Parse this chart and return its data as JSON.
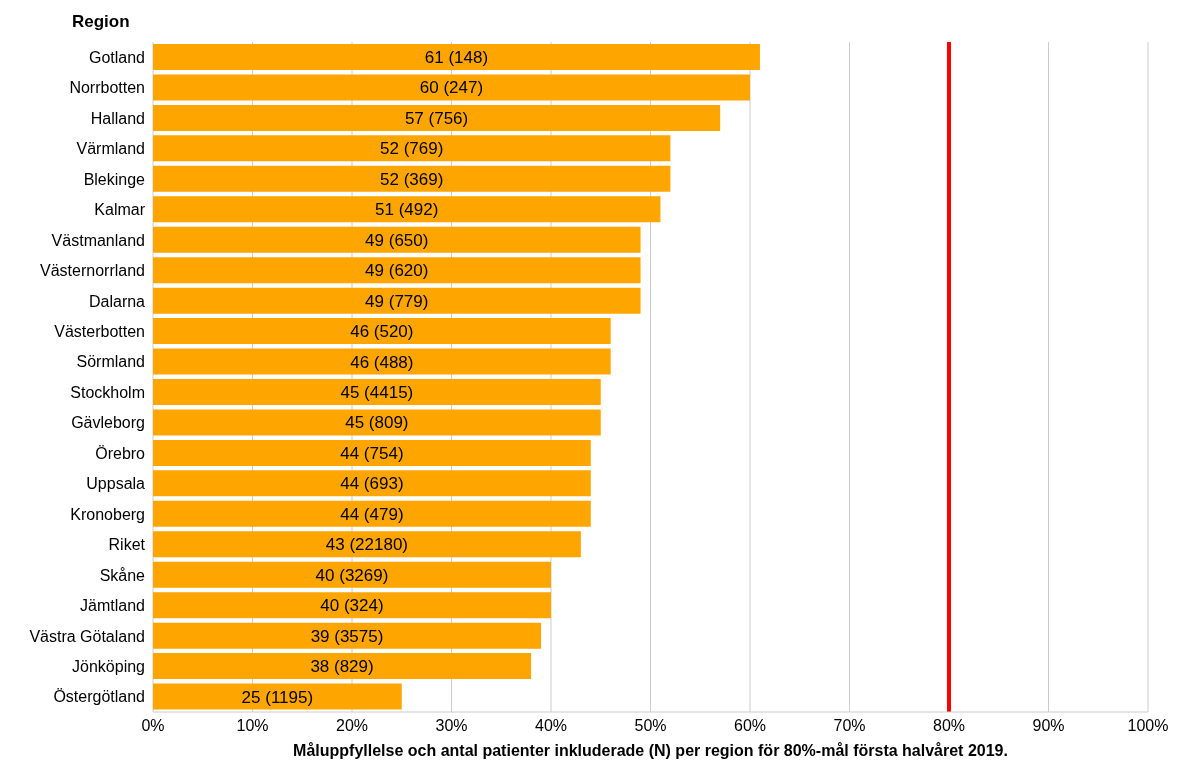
{
  "chart_data": {
    "type": "bar",
    "orientation": "horizontal",
    "ylabel": "Region",
    "xlabel": "Måluppfyllelse och antal patienter inkluderade (N) per region för 80%-mål första halvåret 2019.",
    "categories": [
      "Gotland",
      "Norrbotten",
      "Halland",
      "Värmland",
      "Blekinge",
      "Kalmar",
      "Västmanland",
      "Västernorrland",
      "Dalarna",
      "Västerbotten",
      "Sörmland",
      "Stockholm",
      "Gävleborg",
      "Örebro",
      "Uppsala",
      "Kronoberg",
      "Riket",
      "Skåne",
      "Jämtland",
      "Västra Götaland",
      "Jönköping",
      "Östergötland"
    ],
    "values": [
      61,
      60,
      57,
      52,
      52,
      51,
      49,
      49,
      49,
      46,
      46,
      45,
      45,
      44,
      44,
      44,
      43,
      40,
      40,
      39,
      38,
      25
    ],
    "value_labels": [
      "61 (148)",
      "60 (247)",
      "57 (756)",
      "52 (769)",
      "52 (369)",
      "51 (492)",
      "49 (650)",
      "49 (620)",
      "49 (779)",
      "46 (520)",
      "46 (488)",
      "45 (4415)",
      "45 (809)",
      "44 (754)",
      "44 (693)",
      "44 (479)",
      "43 (22180)",
      "40 (3269)",
      "40 (324)",
      "39 (3575)",
      "38 (829)",
      "25 (1195)"
    ],
    "color": "#ffa500",
    "xlim": [
      0,
      100
    ],
    "xticks": [
      {
        "value": 0,
        "label": "0%"
      },
      {
        "value": 10,
        "label": "10%"
      },
      {
        "value": 20,
        "label": "20%"
      },
      {
        "value": 30,
        "label": "30%"
      },
      {
        "value": 40,
        "label": "40%"
      },
      {
        "value": 50,
        "label": "50%"
      },
      {
        "value": 60,
        "label": "60%"
      },
      {
        "value": 70,
        "label": "70%"
      },
      {
        "value": 80,
        "label": "80%"
      },
      {
        "value": 90,
        "label": "90%"
      },
      {
        "value": 100,
        "label": "100%"
      }
    ],
    "grid": "x",
    "ref_lines": [
      {
        "axis": "x",
        "value": 80,
        "color": "#ff0000"
      }
    ]
  }
}
